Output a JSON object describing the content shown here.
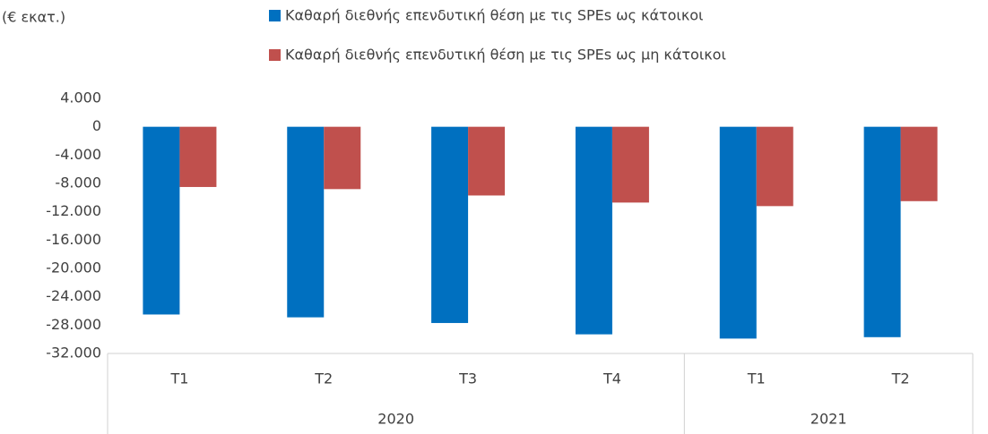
{
  "chart_data": {
    "type": "bar",
    "unit_label": "(€ εκατ.)",
    "category_groups": [
      {
        "label": "2020",
        "categories": [
          "T1",
          "T2",
          "T3",
          "T4"
        ]
      },
      {
        "label": "2021",
        "categories": [
          "T1",
          "T2"
        ]
      }
    ],
    "series": [
      {
        "name": "Καθαρή διεθνής επενδυτική θέση με τις SPEs ως κάτοικοι",
        "color": "#0070c0",
        "values": [
          -26500,
          -26900,
          -27700,
          -29300,
          -29900,
          -29700
        ]
      },
      {
        "name": "Καθαρή διεθνής επενδυτική θέση με τις SPEs ως μη κάτοικοι",
        "color": "#c0504d",
        "values": [
          -8500,
          -8800,
          -9700,
          -10700,
          -11200,
          -10500
        ]
      }
    ],
    "ylim": [
      -32000,
      4000
    ],
    "yticks": [
      {
        "value": 4000,
        "label": "4.000"
      },
      0,
      {
        "value": -4000,
        "label": "-4.000"
      },
      {
        "value": -8000,
        "label": "-8.000"
      },
      {
        "value": -12000,
        "label": "-12.000"
      },
      {
        "value": -16000,
        "label": "-16.000"
      },
      {
        "value": -20000,
        "label": "-20.000"
      },
      {
        "value": -24000,
        "label": "-24.000"
      },
      {
        "value": -28000,
        "label": "-28.000"
      },
      {
        "value": -32000,
        "label": "-32.000"
      }
    ],
    "legend": "top",
    "grid": false
  }
}
